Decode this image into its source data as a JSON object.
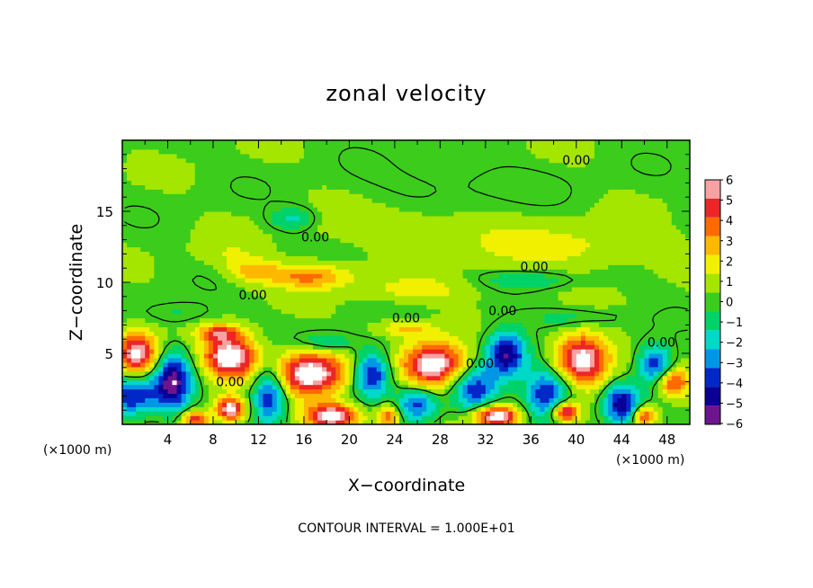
{
  "chart_data": {
    "type": "heatmap",
    "title": "zonal velocity",
    "xlabel": "X−coordinate",
    "ylabel": "Z−coordinate",
    "x_unit_left": "(×1000 m)",
    "x_unit_right": "(×1000 m)",
    "x_ticks": [
      "4",
      "8",
      "12",
      "16",
      "20",
      "24",
      "28",
      "32",
      "36",
      "40",
      "44",
      "48"
    ],
    "x_tick_values": [
      4,
      8,
      12,
      16,
      20,
      24,
      28,
      32,
      36,
      40,
      44,
      48
    ],
    "y_ticks": [
      "5",
      "10",
      "15"
    ],
    "y_tick_values": [
      5,
      10,
      15
    ],
    "xlim": [
      0,
      50
    ],
    "ylim": [
      0,
      20
    ],
    "colorbar": {
      "labels": [
        "6",
        "5",
        "4",
        "3",
        "2",
        "1",
        "0",
        "−1",
        "−2",
        "−3",
        "−4",
        "−5",
        "−6"
      ],
      "values": [
        6,
        5,
        4,
        3,
        2,
        1,
        0,
        -1,
        -2,
        -3,
        -4,
        -5,
        -6
      ],
      "colors": [
        "#f6a2a2",
        "#ec2626",
        "#ff6a00",
        "#ffb800",
        "#f0f000",
        "#a4e600",
        "#3ccc1c",
        "#00d26a",
        "#00d8c8",
        "#0096e6",
        "#0028c8",
        "#0a0096",
        "#6e148c"
      ]
    },
    "contour_labels": [
      {
        "text": "0.00",
        "x": 40,
        "z": 18.6
      },
      {
        "text": "0.00",
        "x": 17,
        "z": 13.2
      },
      {
        "text": "0.00",
        "x": 36.3,
        "z": 11.1
      },
      {
        "text": "0.00",
        "x": 11.5,
        "z": 9.1
      },
      {
        "text": "0.00",
        "x": 25,
        "z": 7.5
      },
      {
        "text": "0.00",
        "x": 33.5,
        "z": 8.0
      },
      {
        "text": "0.00",
        "x": 31.5,
        "z": 4.3
      },
      {
        "text": "0.00",
        "x": 47.5,
        "z": 5.8
      },
      {
        "text": "0.00",
        "x": 9.5,
        "z": 3.0
      }
    ],
    "field_blobs": [
      {
        "x": 1.3,
        "z": 5.0,
        "rx": 1.8,
        "rz": 1.5,
        "v": 6.5
      },
      {
        "x": 9.5,
        "z": 4.8,
        "rx": 2.4,
        "rz": 1.5,
        "v": 7
      },
      {
        "x": 16.5,
        "z": 3.6,
        "rx": 3.2,
        "rz": 1.6,
        "v": 7
      },
      {
        "x": 27.5,
        "z": 4.2,
        "rx": 2.8,
        "rz": 1.6,
        "v": 7
      },
      {
        "x": 40.5,
        "z": 4.6,
        "rx": 2.4,
        "rz": 1.8,
        "v": 7
      },
      {
        "x": 18.5,
        "z": 0.6,
        "rx": 2.4,
        "rz": 0.9,
        "v": 7
      },
      {
        "x": 33,
        "z": 0.6,
        "rx": 2.0,
        "rz": 0.8,
        "v": 7
      },
      {
        "x": 9.5,
        "z": 1.1,
        "rx": 1.2,
        "rz": 0.8,
        "v": 7
      },
      {
        "x": 39,
        "z": 0.9,
        "rx": 1.2,
        "rz": 0.7,
        "v": 6.5
      },
      {
        "x": 48.5,
        "z": 3.0,
        "rx": 1.5,
        "rz": 1.0,
        "v": 4.5
      },
      {
        "x": 6.5,
        "z": 0.4,
        "rx": 1.2,
        "rz": 0.6,
        "v": 5
      },
      {
        "x": 23.5,
        "z": 0.6,
        "rx": 1.0,
        "rz": 0.8,
        "v": 4
      },
      {
        "x": 46,
        "z": 0.6,
        "rx": 1.1,
        "rz": 0.7,
        "v": 5
      },
      {
        "x": 4.5,
        "z": 3.0,
        "rx": 1.6,
        "rz": 2.0,
        "v": -6
      },
      {
        "x": 0.8,
        "z": 2.0,
        "rx": 2.5,
        "rz": 1.4,
        "v": -5
      },
      {
        "x": 13,
        "z": 2.2,
        "rx": 1.5,
        "rz": 2.0,
        "v": -5.5
      },
      {
        "x": 22,
        "z": 3.6,
        "rx": 1.6,
        "rz": 1.6,
        "v": -5.5
      },
      {
        "x": 33.8,
        "z": 5.0,
        "rx": 1.8,
        "rz": 1.6,
        "v": -6
      },
      {
        "x": 31,
        "z": 2.5,
        "rx": 2.0,
        "rz": 1.6,
        "v": -4.5
      },
      {
        "x": 37.5,
        "z": 2.2,
        "rx": 2.0,
        "rz": 1.8,
        "v": -5.5
      },
      {
        "x": 44,
        "z": 1.5,
        "rx": 1.5,
        "rz": 1.4,
        "v": -5.5
      },
      {
        "x": 47,
        "z": 4.2,
        "rx": 1.5,
        "rz": 1.4,
        "v": -5
      },
      {
        "x": 26,
        "z": 1.4,
        "rx": 1.8,
        "rz": 1.2,
        "v": -4.5
      },
      {
        "x": 18,
        "z": 5.8,
        "rx": 2.5,
        "rz": 0.7,
        "v": -2.2
      },
      {
        "x": 16.5,
        "z": 10.5,
        "rx": 3.5,
        "rz": 0.9,
        "v": 3.5
      },
      {
        "x": 11.5,
        "z": 10.8,
        "rx": 2.2,
        "rz": 0.8,
        "v": 2.5
      },
      {
        "x": 26,
        "z": 9.5,
        "rx": 5,
        "rz": 0.9,
        "v": 1.6
      },
      {
        "x": 38,
        "z": 12.5,
        "rx": 9,
        "rz": 1.5,
        "v": 1.6
      },
      {
        "x": 24,
        "z": 14.0,
        "rx": 8,
        "rz": 1.2,
        "v": 1.0
      },
      {
        "x": 15,
        "z": 14.5,
        "rx": 2,
        "rz": 0.8,
        "v": -2.2
      },
      {
        "x": 36,
        "z": 10.2,
        "rx": 4,
        "rz": 0.6,
        "v": -1.5
      },
      {
        "x": 5,
        "z": 7.8,
        "rx": 3,
        "rz": 0.8,
        "v": -1.2
      },
      {
        "x": 40,
        "z": 7.5,
        "rx": 4,
        "rz": 0.7,
        "v": -1.5
      },
      {
        "x": 30,
        "z": 17.0,
        "rx": 8,
        "rz": 1.4,
        "v": -0.7
      },
      {
        "x": 9.5,
        "z": 12.0,
        "rx": 3,
        "rz": 1.0,
        "v": 1.0
      },
      {
        "x": 25,
        "z": 6.8,
        "rx": 2.5,
        "rz": 0.6,
        "v": 2.5
      },
      {
        "x": 8.5,
        "z": 6.5,
        "rx": 1.8,
        "rz": 0.6,
        "v": 3.5
      }
    ]
  },
  "footer": {
    "contour_interval": "CONTOUR INTERVAL = 1.000E+01"
  }
}
